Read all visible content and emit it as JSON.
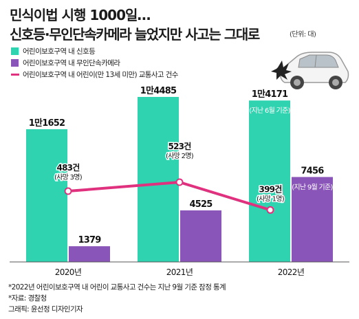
{
  "header": {
    "title_line1": "민식이법 시행 1000일…",
    "title_line2": "신호등·무인단속카메라 늘었지만 사고는 그대로",
    "unit": "(단위: 대)"
  },
  "legend": [
    {
      "label": "어린이보호구역 내 신호등",
      "color": "#2fd3b0",
      "kind": "box"
    },
    {
      "label": "어린이보호구역 내 무인단속카메라",
      "color": "#8a55b8",
      "kind": "box"
    },
    {
      "label": "어린이보호구역 내 어린이(만 13세 미만) 교통사고 건수",
      "color": "#e0317f",
      "kind": "line"
    }
  ],
  "chart_data": {
    "type": "bar",
    "categories": [
      "2020년",
      "2021년",
      "2022년"
    ],
    "series": [
      {
        "name": "어린이보호구역 내 신호등",
        "values": [
          11652,
          14485,
          14171
        ],
        "color": "#2fd3b0",
        "labels": [
          {
            "main": "1만1652",
            "sub": ""
          },
          {
            "main": "1만4485",
            "sub": ""
          },
          {
            "main": "1만4171",
            "sub": "(지난 6월 기준)"
          }
        ]
      },
      {
        "name": "어린이보호구역 내 무인단속카메라",
        "values": [
          1379,
          4525,
          7456
        ],
        "color": "#8a55b8",
        "labels": [
          {
            "main": "1379",
            "sub": ""
          },
          {
            "main": "4525",
            "sub": ""
          },
          {
            "main": "7456",
            "sub": "(지난 9월 기준)"
          }
        ]
      },
      {
        "name": "어린이보호구역 내 어린이(만 13세 미만) 교통사고 건수",
        "type": "line",
        "values": [
          483,
          523,
          399
        ],
        "color": "#e0317f",
        "labels": [
          {
            "main": "483건",
            "sub": "(사망 3명)"
          },
          {
            "main": "523건",
            "sub": "(사망 2명)"
          },
          {
            "main": "399건",
            "sub": "(사망 1명)"
          }
        ]
      }
    ]
  },
  "footnotes": [
    "*2022년 어린이보호구역 내 어린이 교통사고 건수는 지난 9월 기준 잠정 통계",
    "*자료: 경찰청",
    "그래픽: 윤선정 디자인기자"
  ]
}
